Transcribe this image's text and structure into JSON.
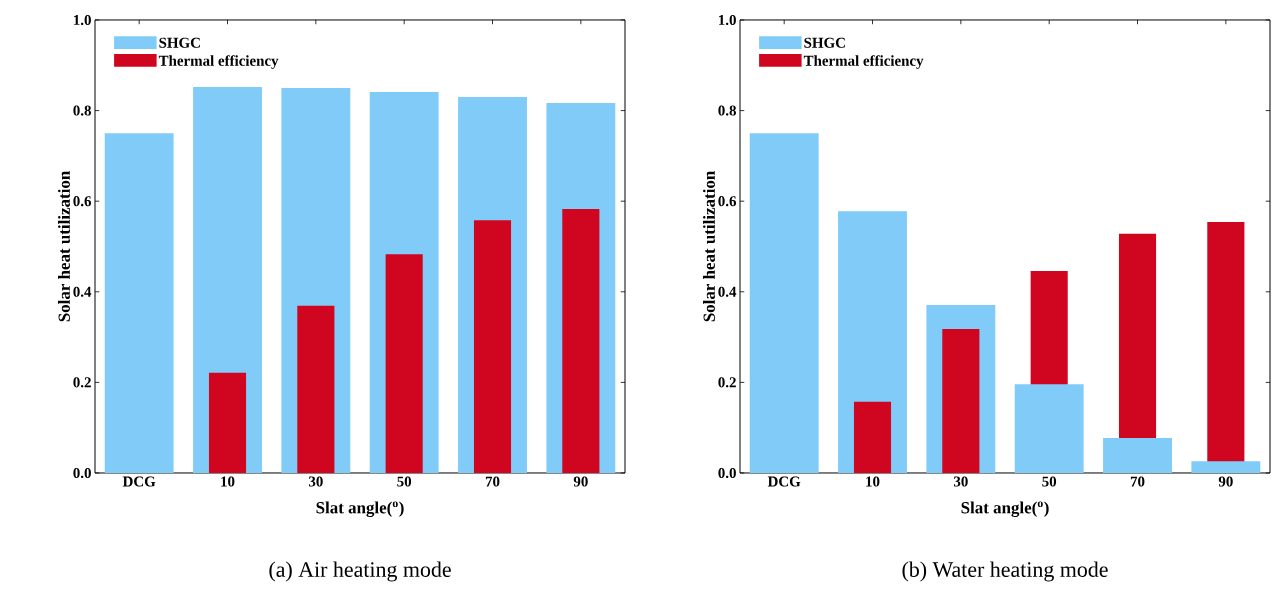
{
  "chart_data": [
    {
      "type": "bar",
      "title": "(a) Air heating mode",
      "xlabel": "Slat angle($^{o}$)",
      "ylabel": "Solar heat utilization",
      "categories": [
        "DCG",
        "10",
        "30",
        "50",
        "70",
        "90"
      ],
      "series": [
        {
          "name": "SHGC",
          "color": "#80cbf8",
          "values": [
            0.75,
            0.852,
            0.85,
            0.841,
            0.83,
            0.817
          ]
        },
        {
          "name": "Thermal efficiency",
          "color": "#d0051f",
          "values": [
            null,
            0.221,
            0.369,
            0.483,
            0.558,
            0.583
          ]
        }
      ],
      "ylim": [
        0,
        1.0
      ],
      "yticks": [
        {
          "value": 0,
          "label": "0.0"
        },
        {
          "value": 0.2,
          "label": "0.2"
        },
        {
          "value": 0.4,
          "label": "0.4"
        },
        {
          "value": 0.6,
          "label": "0.6"
        },
        {
          "value": 0.8,
          "label": "0.8"
        },
        {
          "value": 1.0,
          "label": "1.0"
        }
      ],
      "legend": "top left"
    },
    {
      "type": "bar",
      "title": "(b) Water heating mode",
      "xlabel": "Slat angle($^{o}$)",
      "ylabel": "Solar heat utilization",
      "categories": [
        "DCG",
        "10",
        "30",
        "50",
        "70",
        "90"
      ],
      "series": [
        {
          "name": "SHGC",
          "color": "#80cbf8",
          "values": [
            0.75,
            0.578,
            0.371,
            0.196,
            0.077,
            0.026
          ]
        },
        {
          "name": "Thermal efficiency",
          "color": "#d0051f",
          "values": [
            null,
            0.157,
            0.318,
            0.446,
            0.528,
            0.554
          ]
        }
      ],
      "ylim": [
        0,
        1.0
      ],
      "yticks": [
        {
          "value": 0,
          "label": "0.0"
        },
        {
          "value": 0.2,
          "label": "0.2"
        },
        {
          "value": 0.4,
          "label": "0.4"
        },
        {
          "value": 0.6,
          "label": "0.6"
        },
        {
          "value": 0.8,
          "label": "0.8"
        },
        {
          "value": 1.0,
          "label": "1.0"
        }
      ],
      "legend": "top left"
    }
  ]
}
